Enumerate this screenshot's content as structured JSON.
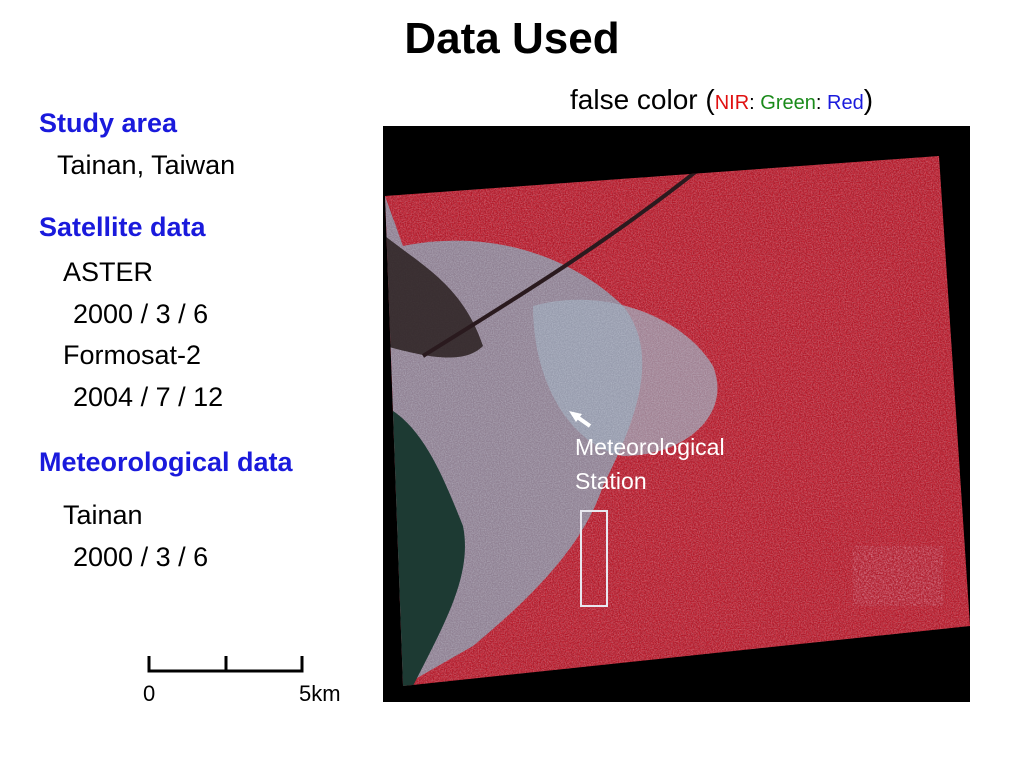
{
  "title": "Data Used",
  "caption": {
    "prefix": "false color (",
    "nir": "NIR",
    "sep1": ": ",
    "green": "Green",
    "sep2": ": ",
    "red": "Red",
    "suffix": ")",
    "colors": {
      "nir": "#e01010",
      "green": "#1a8a1a",
      "red": "#1a1adc"
    }
  },
  "study_area": {
    "heading": "Study area",
    "value": "Tainan, Taiwan"
  },
  "satellite": {
    "heading": "Satellite data",
    "items": [
      {
        "name": "ASTER",
        "date": "2000 / 3 / 6"
      },
      {
        "name": "Formosat-2",
        "date": "2004 / 7 / 12"
      }
    ]
  },
  "meteorological": {
    "heading": "Meteorological data",
    "name": "Tainan",
    "date": "2000 / 3 / 6"
  },
  "image": {
    "station_label_line1": "Meteorological",
    "station_label_line2": "Station",
    "colors": {
      "heading": "#1a1adc",
      "vegetation": "#d01c2c",
      "urban": "#8c98aa",
      "water": "#1d3a33"
    }
  },
  "scalebar": {
    "start": "0",
    "end": "5km"
  }
}
